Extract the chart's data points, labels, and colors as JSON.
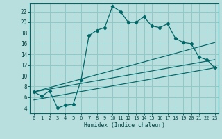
{
  "title": "",
  "xlabel": "Humidex (Indice chaleur)",
  "bg_color": "#b8dede",
  "grid_color": "#90c8c8",
  "line_color": "#006666",
  "xlim": [
    -0.5,
    23.5
  ],
  "ylim": [
    3.0,
    23.5
  ],
  "xticks": [
    0,
    1,
    2,
    3,
    4,
    5,
    6,
    7,
    8,
    9,
    10,
    11,
    12,
    13,
    14,
    15,
    16,
    17,
    18,
    19,
    20,
    21,
    22,
    23
  ],
  "yticks": [
    4,
    6,
    8,
    10,
    12,
    14,
    16,
    18,
    20,
    22
  ],
  "main_x": [
    0,
    1,
    2,
    3,
    4,
    5,
    6,
    7,
    8,
    9,
    10,
    11,
    12,
    13,
    14,
    15,
    16,
    17,
    18,
    19,
    20,
    21,
    22,
    23
  ],
  "main_y": [
    7.0,
    6.2,
    7.2,
    4.0,
    4.5,
    4.7,
    9.2,
    17.5,
    18.5,
    19.0,
    23.0,
    22.0,
    20.0,
    20.0,
    21.0,
    19.3,
    19.0,
    19.7,
    17.0,
    16.2,
    16.0,
    13.5,
    13.0,
    11.5
  ],
  "line1_x": [
    0,
    23
  ],
  "line1_y": [
    7.0,
    16.2
  ],
  "line2_x": [
    0,
    23
  ],
  "line2_y": [
    7.0,
    13.0
  ],
  "line3_x": [
    0,
    23
  ],
  "line3_y": [
    5.5,
    11.5
  ]
}
